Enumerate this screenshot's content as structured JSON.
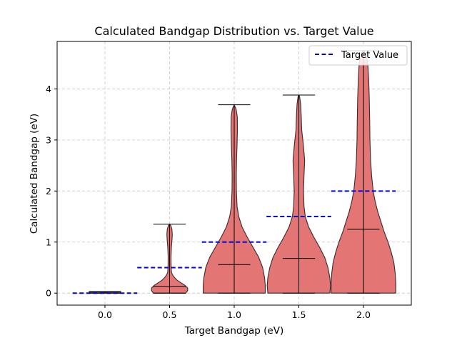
{
  "chart_data": {
    "type": "violin",
    "title": "Calculated Bandgap Distribution vs. Target Value",
    "xlabel": "Target Bandgap (eV)",
    "ylabel": "Calculated Bandgap (eV)",
    "xlim": [
      -0.37,
      2.37
    ],
    "ylim": [
      -0.235,
      4.93
    ],
    "xticks": [
      0.0,
      0.5,
      1.0,
      1.5,
      2.0
    ],
    "xtick_labels": [
      "0.0",
      "0.5",
      "1.0",
      "1.5",
      "2.0"
    ],
    "yticks": [
      0,
      1,
      2,
      3,
      4
    ],
    "ytick_labels": [
      "0",
      "1",
      "2",
      "3",
      "4"
    ],
    "grid": true,
    "legend": {
      "position": "top-right",
      "entries": [
        "Target Value"
      ]
    },
    "colors": {
      "violin_fill": "#e06666",
      "violin_edge": "#3a2a2a",
      "target_line": "#0000dd",
      "grid": "#c8c8c8"
    },
    "violin_half_width_max": 0.25,
    "groups": [
      {
        "target": 0.0,
        "min": 0.0,
        "max": 0.03,
        "median": 0.02,
        "profile": [
          [
            0.0,
            0.12
          ],
          [
            0.015,
            0.12
          ],
          [
            0.03,
            0.12
          ]
        ]
      },
      {
        "target": 0.5,
        "min": 0.0,
        "max": 1.35,
        "median": 0.13,
        "profile": [
          [
            0.0,
            0.125
          ],
          [
            0.05,
            0.14
          ],
          [
            0.1,
            0.14
          ],
          [
            0.15,
            0.12
          ],
          [
            0.2,
            0.09
          ],
          [
            0.25,
            0.06
          ],
          [
            0.3,
            0.04
          ],
          [
            0.35,
            0.025
          ],
          [
            0.4,
            0.015
          ],
          [
            0.5,
            0.012
          ],
          [
            0.7,
            0.011
          ],
          [
            0.9,
            0.014
          ],
          [
            1.05,
            0.019
          ],
          [
            1.15,
            0.021
          ],
          [
            1.25,
            0.018
          ],
          [
            1.32,
            0.01
          ],
          [
            1.35,
            0.0
          ]
        ]
      },
      {
        "target": 1.0,
        "min": 0.0,
        "max": 3.69,
        "median": 0.56,
        "profile": [
          [
            0.0,
            0.24
          ],
          [
            0.15,
            0.24
          ],
          [
            0.3,
            0.235
          ],
          [
            0.5,
            0.22
          ],
          [
            0.7,
            0.19
          ],
          [
            0.9,
            0.145
          ],
          [
            1.1,
            0.1
          ],
          [
            1.3,
            0.06
          ],
          [
            1.5,
            0.035
          ],
          [
            1.7,
            0.022
          ],
          [
            2.0,
            0.017
          ],
          [
            2.3,
            0.016
          ],
          [
            2.6,
            0.018
          ],
          [
            2.9,
            0.022
          ],
          [
            3.2,
            0.025
          ],
          [
            3.45,
            0.024
          ],
          [
            3.6,
            0.015
          ],
          [
            3.69,
            0.0
          ]
        ]
      },
      {
        "target": 1.5,
        "min": 0.0,
        "max": 3.88,
        "median": 0.68,
        "profile": [
          [
            0.0,
            0.24
          ],
          [
            0.15,
            0.245
          ],
          [
            0.3,
            0.24
          ],
          [
            0.5,
            0.225
          ],
          [
            0.7,
            0.2
          ],
          [
            0.9,
            0.16
          ],
          [
            1.1,
            0.115
          ],
          [
            1.3,
            0.075
          ],
          [
            1.5,
            0.05
          ],
          [
            1.7,
            0.04
          ],
          [
            2.0,
            0.036
          ],
          [
            2.3,
            0.04
          ],
          [
            2.6,
            0.045
          ],
          [
            2.9,
            0.035
          ],
          [
            3.2,
            0.022
          ],
          [
            3.5,
            0.018
          ],
          [
            3.7,
            0.014
          ],
          [
            3.85,
            0.006
          ],
          [
            3.88,
            0.0
          ]
        ]
      },
      {
        "target": 2.0,
        "min": 0.0,
        "max": 4.75,
        "median": 1.25,
        "profile": [
          [
            0.0,
            0.25
          ],
          [
            0.2,
            0.25
          ],
          [
            0.4,
            0.245
          ],
          [
            0.6,
            0.235
          ],
          [
            0.8,
            0.215
          ],
          [
            1.0,
            0.19
          ],
          [
            1.2,
            0.16
          ],
          [
            1.4,
            0.135
          ],
          [
            1.6,
            0.11
          ],
          [
            1.8,
            0.09
          ],
          [
            2.0,
            0.075
          ],
          [
            2.3,
            0.063
          ],
          [
            2.6,
            0.055
          ],
          [
            3.0,
            0.05
          ],
          [
            3.4,
            0.048
          ],
          [
            3.8,
            0.045
          ],
          [
            4.2,
            0.04
          ],
          [
            4.5,
            0.033
          ],
          [
            4.7,
            0.018
          ],
          [
            4.75,
            0.0
          ]
        ]
      }
    ],
    "targets": [
      {
        "x": 0.0,
        "y": 0.0
      },
      {
        "x": 0.5,
        "y": 0.5
      },
      {
        "x": 1.0,
        "y": 1.0
      },
      {
        "x": 1.5,
        "y": 1.5
      },
      {
        "x": 2.0,
        "y": 2.0
      }
    ],
    "target_line_half_width": 0.25
  }
}
